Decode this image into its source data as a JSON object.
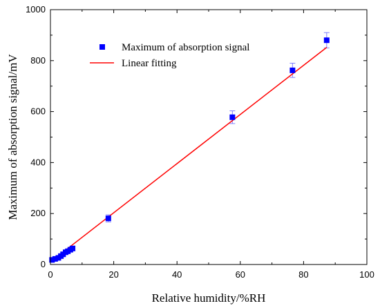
{
  "chart_data": {
    "type": "scatter",
    "title": "",
    "xlabel": "Relative humidity/%RH",
    "ylabel": "Maximum of absorption signal/mV",
    "xlim": [
      0,
      100
    ],
    "ylim": [
      0,
      1000
    ],
    "xticks": [
      0,
      20,
      40,
      60,
      80,
      100
    ],
    "yticks": [
      0,
      200,
      400,
      600,
      800,
      1000
    ],
    "grid": false,
    "legend_position": "top-left",
    "series": [
      {
        "name": "Maximum of absorption signal",
        "kind": "points",
        "color": "#0000ff",
        "error_color": "#7f7fff",
        "x": [
          0.5,
          1.5,
          2.5,
          3.3,
          4.0,
          4.8,
          5.5,
          6.3,
          7.0,
          18.3,
          57.5,
          76.5,
          87.3
        ],
        "y": [
          18,
          22,
          26,
          33,
          40,
          48,
          52,
          58,
          63,
          181,
          578,
          762,
          880
        ],
        "error": [
          6,
          6,
          6,
          7,
          7,
          8,
          8,
          8,
          9,
          14,
          25,
          28,
          30
        ]
      },
      {
        "name": "Linear fitting",
        "kind": "line",
        "color": "#ff0000",
        "x": [
          0.5,
          87.3
        ],
        "y": [
          15,
          852
        ]
      }
    ]
  }
}
